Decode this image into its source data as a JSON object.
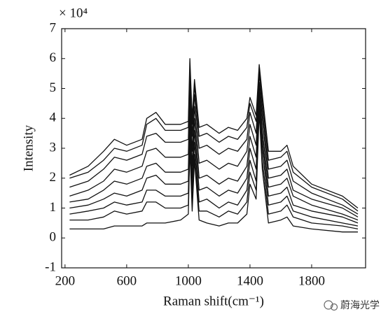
{
  "chart_data": {
    "type": "line",
    "xlabel": "Raman shift(cm⁻¹)",
    "ylabel": "Intensity",
    "exponent_label": "× 10⁴",
    "watermark": "蔚海光学",
    "x": [
      230,
      350,
      450,
      520,
      600,
      700,
      730,
      790,
      850,
      950,
      1000,
      1010,
      1025,
      1040,
      1070,
      1120,
      1200,
      1260,
      1320,
      1380,
      1400,
      1440,
      1460,
      1480,
      1520,
      1600,
      1640,
      1680,
      1800,
      2000,
      2100
    ],
    "series": [
      {
        "color": "#111111",
        "values": [
          2.1,
          2.4,
          2.9,
          3.3,
          3.1,
          3.3,
          4.0,
          4.2,
          3.8,
          3.8,
          3.9,
          6.0,
          4.0,
          5.3,
          3.7,
          3.8,
          3.5,
          3.7,
          3.6,
          4.0,
          4.7,
          4.1,
          5.8,
          4.8,
          2.9,
          2.9,
          3.1,
          2.4,
          1.8,
          1.4,
          1.0
        ]
      },
      {
        "color": "#111111",
        "values": [
          2.0,
          2.2,
          2.6,
          3.0,
          2.9,
          3.1,
          3.8,
          4.0,
          3.6,
          3.6,
          3.7,
          5.6,
          3.8,
          5.1,
          3.4,
          3.5,
          3.2,
          3.4,
          3.3,
          3.7,
          4.5,
          3.9,
          5.7,
          4.6,
          2.6,
          2.7,
          2.9,
          2.2,
          1.7,
          1.3,
          0.9
        ]
      },
      {
        "color": "#111111",
        "values": [
          1.7,
          1.9,
          2.3,
          2.7,
          2.6,
          2.8,
          3.4,
          3.5,
          3.2,
          3.2,
          3.3,
          5.2,
          3.4,
          4.8,
          3.0,
          3.1,
          2.8,
          3.0,
          2.9,
          3.3,
          4.2,
          3.5,
          5.5,
          4.3,
          2.3,
          2.4,
          2.6,
          1.9,
          1.5,
          1.1,
          0.8
        ]
      },
      {
        "color": "#111111",
        "values": [
          1.4,
          1.6,
          1.9,
          2.3,
          2.2,
          2.4,
          2.9,
          3.0,
          2.7,
          2.7,
          2.8,
          4.8,
          2.9,
          4.4,
          2.5,
          2.6,
          2.3,
          2.5,
          2.4,
          2.9,
          3.8,
          3.1,
          5.2,
          4.0,
          2.0,
          2.1,
          2.3,
          1.6,
          1.3,
          1.0,
          0.7
        ]
      },
      {
        "color": "#111111",
        "values": [
          1.2,
          1.3,
          1.6,
          1.9,
          1.8,
          2.0,
          2.4,
          2.5,
          2.2,
          2.2,
          2.3,
          4.4,
          2.4,
          4.0,
          2.0,
          2.1,
          1.8,
          2.0,
          1.9,
          2.4,
          3.4,
          2.7,
          5.0,
          3.6,
          1.7,
          1.8,
          2.0,
          1.4,
          1.1,
          0.8,
          0.6
        ]
      },
      {
        "color": "#111111",
        "values": [
          1.0,
          1.1,
          1.3,
          1.5,
          1.4,
          1.6,
          2.0,
          2.1,
          1.8,
          1.8,
          1.9,
          4.0,
          2.0,
          3.6,
          1.6,
          1.7,
          1.4,
          1.6,
          1.5,
          2.0,
          3.0,
          2.3,
          4.8,
          3.3,
          1.4,
          1.5,
          1.7,
          1.1,
          0.9,
          0.7,
          0.5
        ]
      },
      {
        "color": "#111111",
        "values": [
          0.8,
          0.9,
          1.0,
          1.2,
          1.1,
          1.2,
          1.6,
          1.6,
          1.4,
          1.4,
          1.5,
          3.6,
          1.6,
          3.2,
          1.2,
          1.3,
          1.0,
          1.2,
          1.1,
          1.6,
          2.6,
          1.9,
          4.6,
          3.0,
          1.1,
          1.2,
          1.4,
          0.9,
          0.7,
          0.5,
          0.4
        ]
      },
      {
        "color": "#111111",
        "values": [
          0.6,
          0.6,
          0.7,
          0.9,
          0.8,
          0.9,
          1.2,
          1.2,
          1.0,
          1.0,
          1.1,
          3.2,
          1.2,
          2.8,
          0.9,
          0.9,
          0.7,
          0.9,
          0.8,
          1.2,
          2.2,
          1.6,
          4.4,
          2.6,
          0.8,
          0.9,
          1.1,
          0.7,
          0.5,
          0.4,
          0.3
        ]
      },
      {
        "color": "#111111",
        "values": [
          0.3,
          0.3,
          0.3,
          0.4,
          0.4,
          0.4,
          0.5,
          0.5,
          0.5,
          0.6,
          0.8,
          3.0,
          0.9,
          2.6,
          0.6,
          0.5,
          0.4,
          0.5,
          0.5,
          0.8,
          1.8,
          1.3,
          4.2,
          2.3,
          0.5,
          0.6,
          0.7,
          0.4,
          0.3,
          0.2,
          0.2
        ]
      }
    ],
    "xlim": [
      178,
      2150
    ],
    "xticks": [
      200,
      600,
      1000,
      1400,
      1800
    ],
    "ylim": [
      -1,
      7
    ],
    "yticks": [
      -1,
      0,
      1,
      2,
      3,
      4,
      5,
      6,
      7
    ]
  }
}
